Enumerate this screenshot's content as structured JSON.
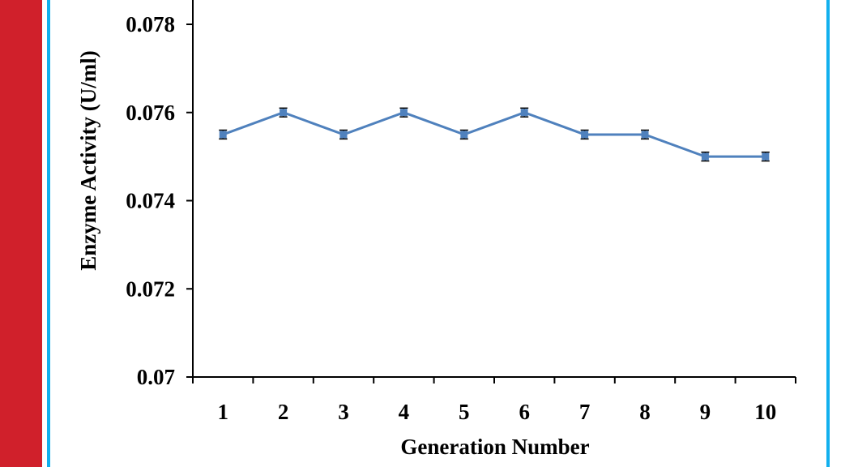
{
  "chart_data": {
    "type": "line",
    "title": "",
    "xlabel": "Generation Number",
    "ylabel": "Enzyme Activity (U/ml)",
    "categories": [
      "1",
      "2",
      "3",
      "4",
      "5",
      "6",
      "7",
      "8",
      "9",
      "10"
    ],
    "series": [
      {
        "values": [
          0.0755,
          0.076,
          0.0755,
          0.076,
          0.0755,
          0.076,
          0.0755,
          0.0755,
          0.075,
          0.075
        ],
        "error": 0.0001
      }
    ],
    "ylim": [
      0.07,
      0.078
    ],
    "yticks": [
      "0.07",
      "0.072",
      "0.074",
      "0.076",
      "0.078"
    ],
    "grid": false,
    "colors": {
      "line": "#4f81bd",
      "marker": "#4f81bd",
      "left_band": "#d0202b",
      "frame_line": "#12b0ee"
    }
  }
}
